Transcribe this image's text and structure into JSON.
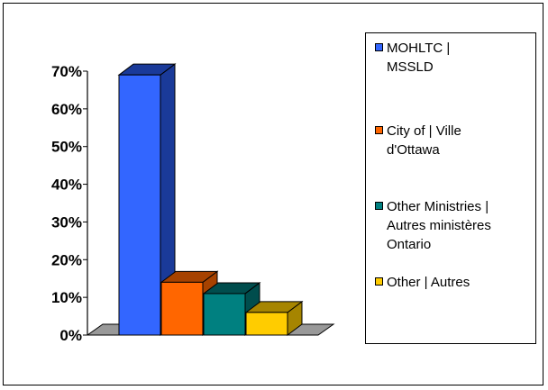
{
  "chart_data": {
    "type": "bar",
    "title": "",
    "xlabel": "",
    "ylabel": "",
    "ylim": [
      0,
      70
    ],
    "y_ticks": [
      "0%",
      "10%",
      "20%",
      "30%",
      "40%",
      "50%",
      "60%",
      "70%"
    ],
    "categories": [
      "MOHLTC | MSSLD",
      "City of | Ville d'Ottawa",
      "Other Ministries | Autres ministères Ontario",
      "Other | Autres"
    ],
    "values": [
      69,
      14,
      11,
      6
    ],
    "unit": "%",
    "grid": false,
    "legend": "right",
    "bar_style": "3d",
    "colors": [
      "#3366ff",
      "#ff6600",
      "#008080",
      "#ffcc00"
    ],
    "dark_colors": [
      "#1a3a99",
      "#a64200",
      "#004d4d",
      "#a68500"
    ]
  },
  "legend": {
    "items": [
      {
        "label": "MOHLTC |\nMSSLD"
      },
      {
        "label": "City of | Ville\nd'Ottawa"
      },
      {
        "label": "Other Ministries |\nAutres ministères\nOntario"
      },
      {
        "label": "Other | Autres"
      }
    ]
  }
}
